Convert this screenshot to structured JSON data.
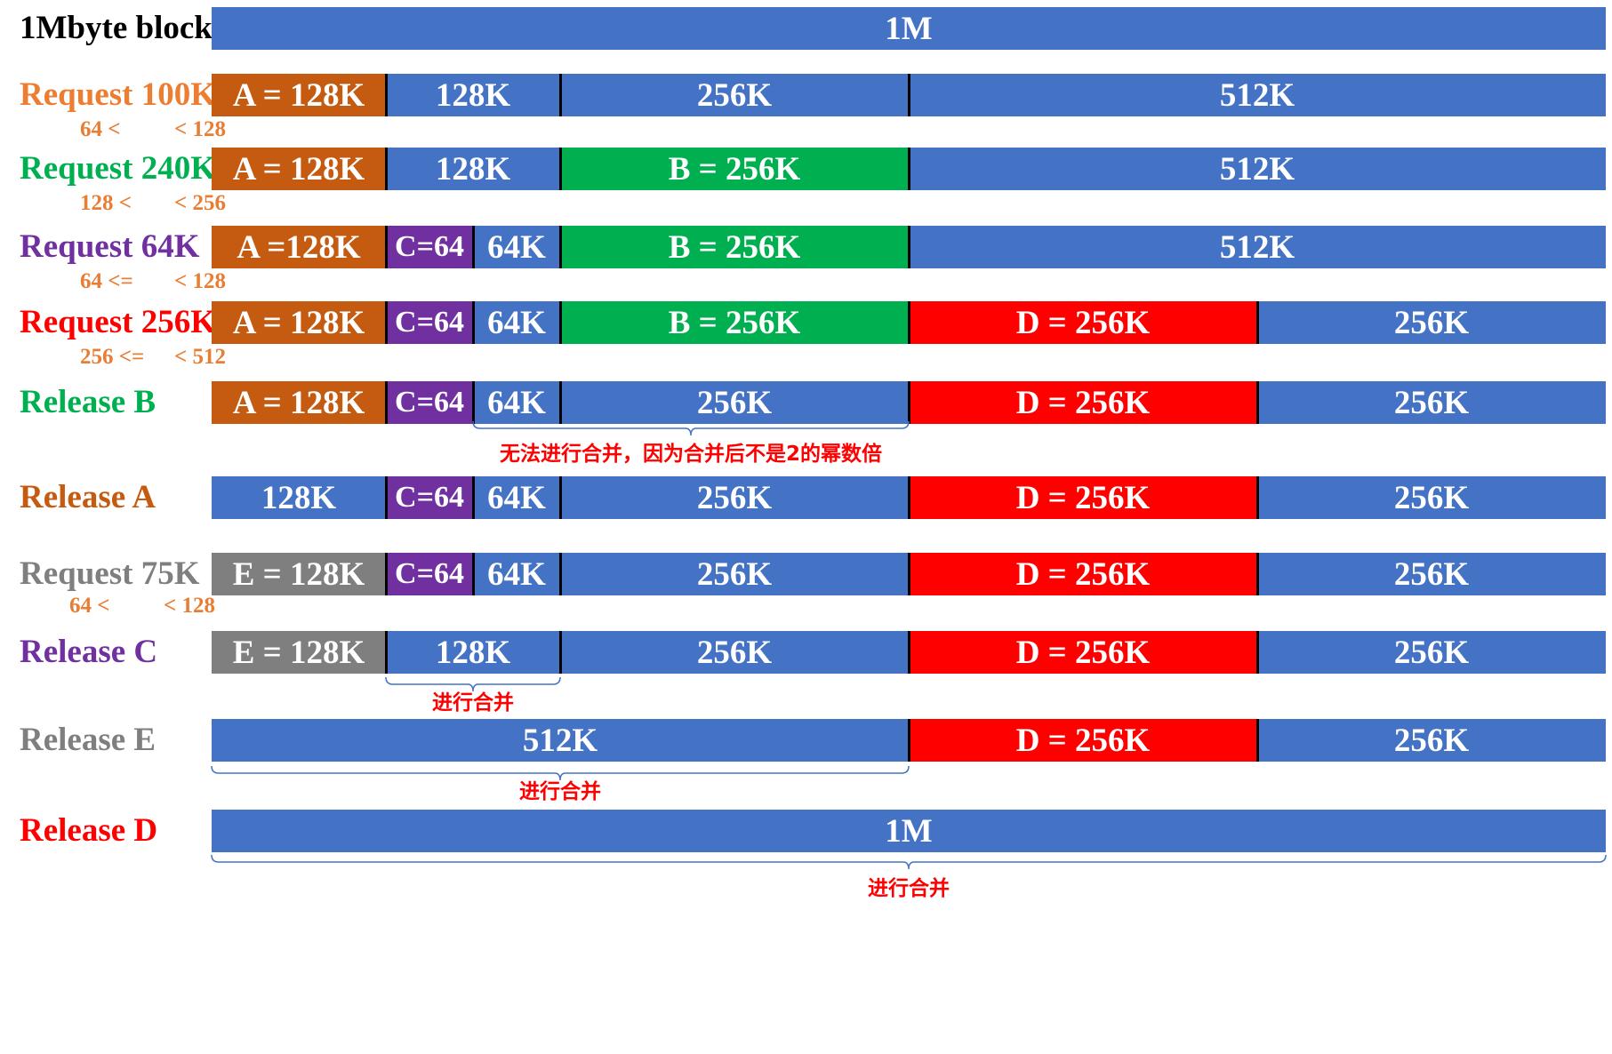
{
  "title_label": "1Mbyte block",
  "colors": {
    "free": "#4472c4",
    "A": "#c55a11",
    "B": "#00b050",
    "C": "#7030a0",
    "D": "#ff0000",
    "E": "#7f7f7f",
    "range_text": "#e87d34",
    "note_text": "#ff0000"
  },
  "rows": [
    {
      "label": "1Mbyte block",
      "color": "#000000",
      "segments": [
        {
          "label": "1M",
          "kind": "free",
          "size": 1024
        }
      ]
    },
    {
      "label": "Request 100K",
      "color": "#ed7d31",
      "range": {
        "left": "64 <",
        "right": "< 128"
      },
      "segments": [
        {
          "label": "A = 128K",
          "kind": "A",
          "size": 128
        },
        {
          "label": "128K",
          "kind": "free",
          "size": 128
        },
        {
          "label": "256K",
          "kind": "free",
          "size": 256
        },
        {
          "label": "512K",
          "kind": "free",
          "size": 512
        }
      ]
    },
    {
      "label": "Request 240K",
      "color": "#00b050",
      "range": {
        "left": "128 <",
        "right": "< 256"
      },
      "segments": [
        {
          "label": "A = 128K",
          "kind": "A",
          "size": 128
        },
        {
          "label": "128K",
          "kind": "free",
          "size": 128
        },
        {
          "label": "B = 256K",
          "kind": "B",
          "size": 256
        },
        {
          "label": "512K",
          "kind": "free",
          "size": 512
        }
      ]
    },
    {
      "label": "Request 64K",
      "color": "#7030a0",
      "range": {
        "left": "64 <=",
        "right": "< 128"
      },
      "segments": [
        {
          "label": "A =128K",
          "kind": "A",
          "size": 128
        },
        {
          "label": "C=64",
          "kind": "C",
          "size": 64
        },
        {
          "label": "64K",
          "kind": "free",
          "size": 64
        },
        {
          "label": "B = 256K",
          "kind": "B",
          "size": 256
        },
        {
          "label": "512K",
          "kind": "free",
          "size": 512
        }
      ]
    },
    {
      "label": "Request 256K",
      "color": "#ff0000",
      "range": {
        "left": "256 <=",
        "right": "< 512"
      },
      "segments": [
        {
          "label": "A = 128K",
          "kind": "A",
          "size": 128
        },
        {
          "label": "C=64",
          "kind": "C",
          "size": 64
        },
        {
          "label": "64K",
          "kind": "free",
          "size": 64
        },
        {
          "label": "B = 256K",
          "kind": "B",
          "size": 256
        },
        {
          "label": "D = 256K",
          "kind": "D",
          "size": 256
        },
        {
          "label": "256K",
          "kind": "free",
          "size": 256
        }
      ]
    },
    {
      "label": "Release B",
      "color": "#00b050",
      "note": "无法进行合并，因为合并后不是2的幂数倍",
      "segments": [
        {
          "label": "A = 128K",
          "kind": "A",
          "size": 128
        },
        {
          "label": "C=64",
          "kind": "C",
          "size": 64
        },
        {
          "label": "64K",
          "kind": "free",
          "size": 64
        },
        {
          "label": "256K",
          "kind": "free",
          "size": 256
        },
        {
          "label": "D = 256K",
          "kind": "D",
          "size": 256
        },
        {
          "label": "256K",
          "kind": "free",
          "size": 256
        }
      ]
    },
    {
      "label": "Release A",
      "color": "#c55a11",
      "segments": [
        {
          "label": "128K",
          "kind": "free",
          "size": 128
        },
        {
          "label": "C=64",
          "kind": "C",
          "size": 64
        },
        {
          "label": "64K",
          "kind": "free",
          "size": 64
        },
        {
          "label": "256K",
          "kind": "free",
          "size": 256
        },
        {
          "label": "D = 256K",
          "kind": "D",
          "size": 256
        },
        {
          "label": "256K",
          "kind": "free",
          "size": 256
        }
      ]
    },
    {
      "label": "Request 75K",
      "color": "#7f7f7f",
      "range": {
        "left": "64 <",
        "right": "< 128"
      },
      "segments": [
        {
          "label": "E = 128K",
          "kind": "E",
          "size": 128
        },
        {
          "label": "C=64",
          "kind": "C",
          "size": 64
        },
        {
          "label": "64K",
          "kind": "free",
          "size": 64
        },
        {
          "label": "256K",
          "kind": "free",
          "size": 256
        },
        {
          "label": "D = 256K",
          "kind": "D",
          "size": 256
        },
        {
          "label": "256K",
          "kind": "free",
          "size": 256
        }
      ]
    },
    {
      "label": "Release C",
      "color": "#7030a0",
      "note": "进行合并",
      "segments": [
        {
          "label": "E = 128K",
          "kind": "E",
          "size": 128
        },
        {
          "label": "128K",
          "kind": "free",
          "size": 128
        },
        {
          "label": "256K",
          "kind": "free",
          "size": 256
        },
        {
          "label": "D = 256K",
          "kind": "D",
          "size": 256
        },
        {
          "label": "256K",
          "kind": "free",
          "size": 256
        }
      ]
    },
    {
      "label": "Release E",
      "color": "#7f7f7f",
      "note": "进行合并",
      "segments": [
        {
          "label": "512K",
          "kind": "free",
          "size": 512
        },
        {
          "label": "D = 256K",
          "kind": "D",
          "size": 256
        },
        {
          "label": "256K",
          "kind": "free",
          "size": 256
        }
      ]
    },
    {
      "label": "Release D",
      "color": "#ff0000",
      "note": "进行合并",
      "segments": [
        {
          "label": "1M",
          "kind": "free",
          "size": 1024
        }
      ]
    }
  ]
}
